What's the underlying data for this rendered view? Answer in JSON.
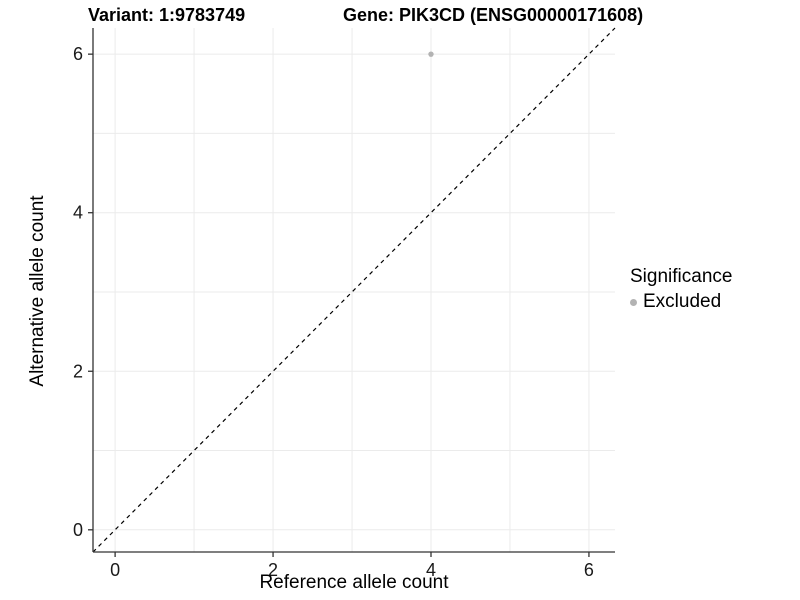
{
  "header": {
    "title_left": "Variant: 1:9783749",
    "title_right": "Gene: PIK3CD (ENSG00000171608)"
  },
  "chart_data": {
    "type": "scatter",
    "title": "Variant: 1:9783749  Gene: PIK3CD (ENSG00000171608)",
    "xlabel": "Reference allele count",
    "ylabel": "Alternative allele count",
    "xlim": [
      -0.28,
      6.33
    ],
    "ylim": [
      -0.28,
      6.33
    ],
    "xticks": [
      0,
      2,
      4,
      6
    ],
    "yticks": [
      0,
      2,
      4,
      6
    ],
    "grid_x": [
      0,
      1,
      2,
      3,
      4,
      5,
      6
    ],
    "grid_y": [
      0,
      1,
      2,
      3,
      4,
      5,
      6
    ],
    "grid": true,
    "identity_line": {
      "style": "dashed",
      "slope": 1,
      "intercept": 0
    },
    "series": [
      {
        "name": "Excluded",
        "color": "#b3b3b3",
        "points": [
          {
            "x": 4,
            "y": 6
          }
        ]
      }
    ],
    "legend": {
      "title": "Significance",
      "position": "right",
      "entries": [
        {
          "label": "Excluded",
          "color": "#b3b3b3"
        }
      ]
    },
    "colors": {
      "gridline": "#ebebeb",
      "axis_line": "#333333",
      "tick_text": "#1a1a1a",
      "identity_line": "#000000",
      "background": "#ffffff"
    }
  }
}
